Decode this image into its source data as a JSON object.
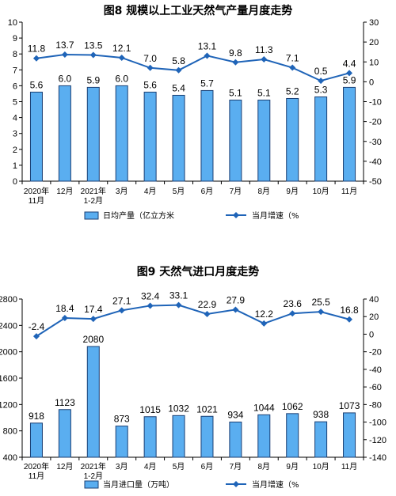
{
  "chart_data": [
    {
      "type": "bar",
      "title": "图8  规模以上工业天然气产量月度走势",
      "categories": [
        [
          "2020年",
          "11月"
        ],
        [
          "12月"
        ],
        [
          "2021年",
          "1-2月"
        ],
        [
          "3月"
        ],
        [
          "4月"
        ],
        [
          "5月"
        ],
        [
          "6月"
        ],
        [
          "7月"
        ],
        [
          "8月"
        ],
        [
          "9月"
        ],
        [
          "10月"
        ],
        [
          "11月"
        ]
      ],
      "ylim": [
        0,
        10
      ],
      "y_ticks": [
        "0",
        "1",
        "2",
        "3",
        "4",
        "5",
        "6",
        "7",
        "8",
        "9",
        "10"
      ],
      "y2lim": [
        -50,
        30
      ],
      "y2_ticks": [
        "-50",
        "-40",
        "-30",
        "-20",
        "-10",
        "0",
        "10",
        "20",
        "30"
      ],
      "series": [
        {
          "name": "日均产量（亿立方米",
          "type": "bar",
          "axis": "left",
          "color": "#5aaef0",
          "values": [
            5.6,
            6.0,
            5.9,
            6.0,
            5.6,
            5.4,
            5.7,
            5.1,
            5.1,
            5.2,
            5.3,
            5.9
          ],
          "labels": [
            "5.6",
            "6.0",
            "5.9",
            "6.0",
            "5.6",
            "5.4",
            "5.7",
            "5.1",
            "5.1",
            "5.2",
            "5.3",
            "5.9"
          ]
        },
        {
          "name": "当月增速（%",
          "type": "line",
          "axis": "right",
          "color": "#1f64b8",
          "values": [
            11.8,
            13.7,
            13.5,
            12.1,
            7.0,
            5.8,
            13.1,
            9.8,
            11.3,
            7.1,
            0.5,
            4.4
          ],
          "labels": [
            "11.8",
            "13.7",
            "13.5",
            "12.1",
            "7.0",
            "5.8",
            "13.1",
            "9.8",
            "11.3",
            "7.1",
            "0.5",
            "4.4"
          ]
        }
      ],
      "legend_position": "bottom",
      "grid": false
    },
    {
      "type": "bar",
      "title": "图9  天然气进口月度走势",
      "categories": [
        [
          "2020年",
          "11月"
        ],
        [
          "12月"
        ],
        [
          "2021年",
          "1-2月"
        ],
        [
          "3月"
        ],
        [
          "4月"
        ],
        [
          "5月"
        ],
        [
          "6月"
        ],
        [
          "7月"
        ],
        [
          "8月"
        ],
        [
          "9月"
        ],
        [
          "10月"
        ],
        [
          "11月"
        ]
      ],
      "ylim": [
        400,
        2800
      ],
      "y_ticks": [
        "400",
        "800",
        "1200",
        "1600",
        "2000",
        "2400",
        "2800"
      ],
      "y2lim": [
        -140,
        40
      ],
      "y2_ticks": [
        "-140",
        "-120",
        "-100",
        "-80",
        "-60",
        "-40",
        "-20",
        "0",
        "20",
        "40"
      ],
      "series": [
        {
          "name": "当月进口量（万吨）",
          "type": "bar",
          "axis": "left",
          "color": "#5aaef0",
          "values": [
            918,
            1123,
            2080,
            873,
            1015,
            1032,
            1021,
            934,
            1044,
            1062,
            938,
            1073
          ],
          "labels": [
            "918",
            "1123",
            "2080",
            "873",
            "1015",
            "1032",
            "1021",
            "934",
            "1044",
            "1062",
            "938",
            "1073"
          ]
        },
        {
          "name": "当月增速（%",
          "type": "line",
          "axis": "right",
          "color": "#1f64b8",
          "values": [
            -2.4,
            18.4,
            17.4,
            27.1,
            32.4,
            33.1,
            22.9,
            27.9,
            12.2,
            23.6,
            25.5,
            16.8
          ],
          "labels": [
            "-2.4",
            "18.4",
            "17.4",
            "27.1",
            "32.4",
            "33.1",
            "22.9",
            "27.9",
            "12.2",
            "23.6",
            "25.5",
            "16.8"
          ]
        }
      ],
      "legend_position": "bottom",
      "grid": false
    }
  ]
}
